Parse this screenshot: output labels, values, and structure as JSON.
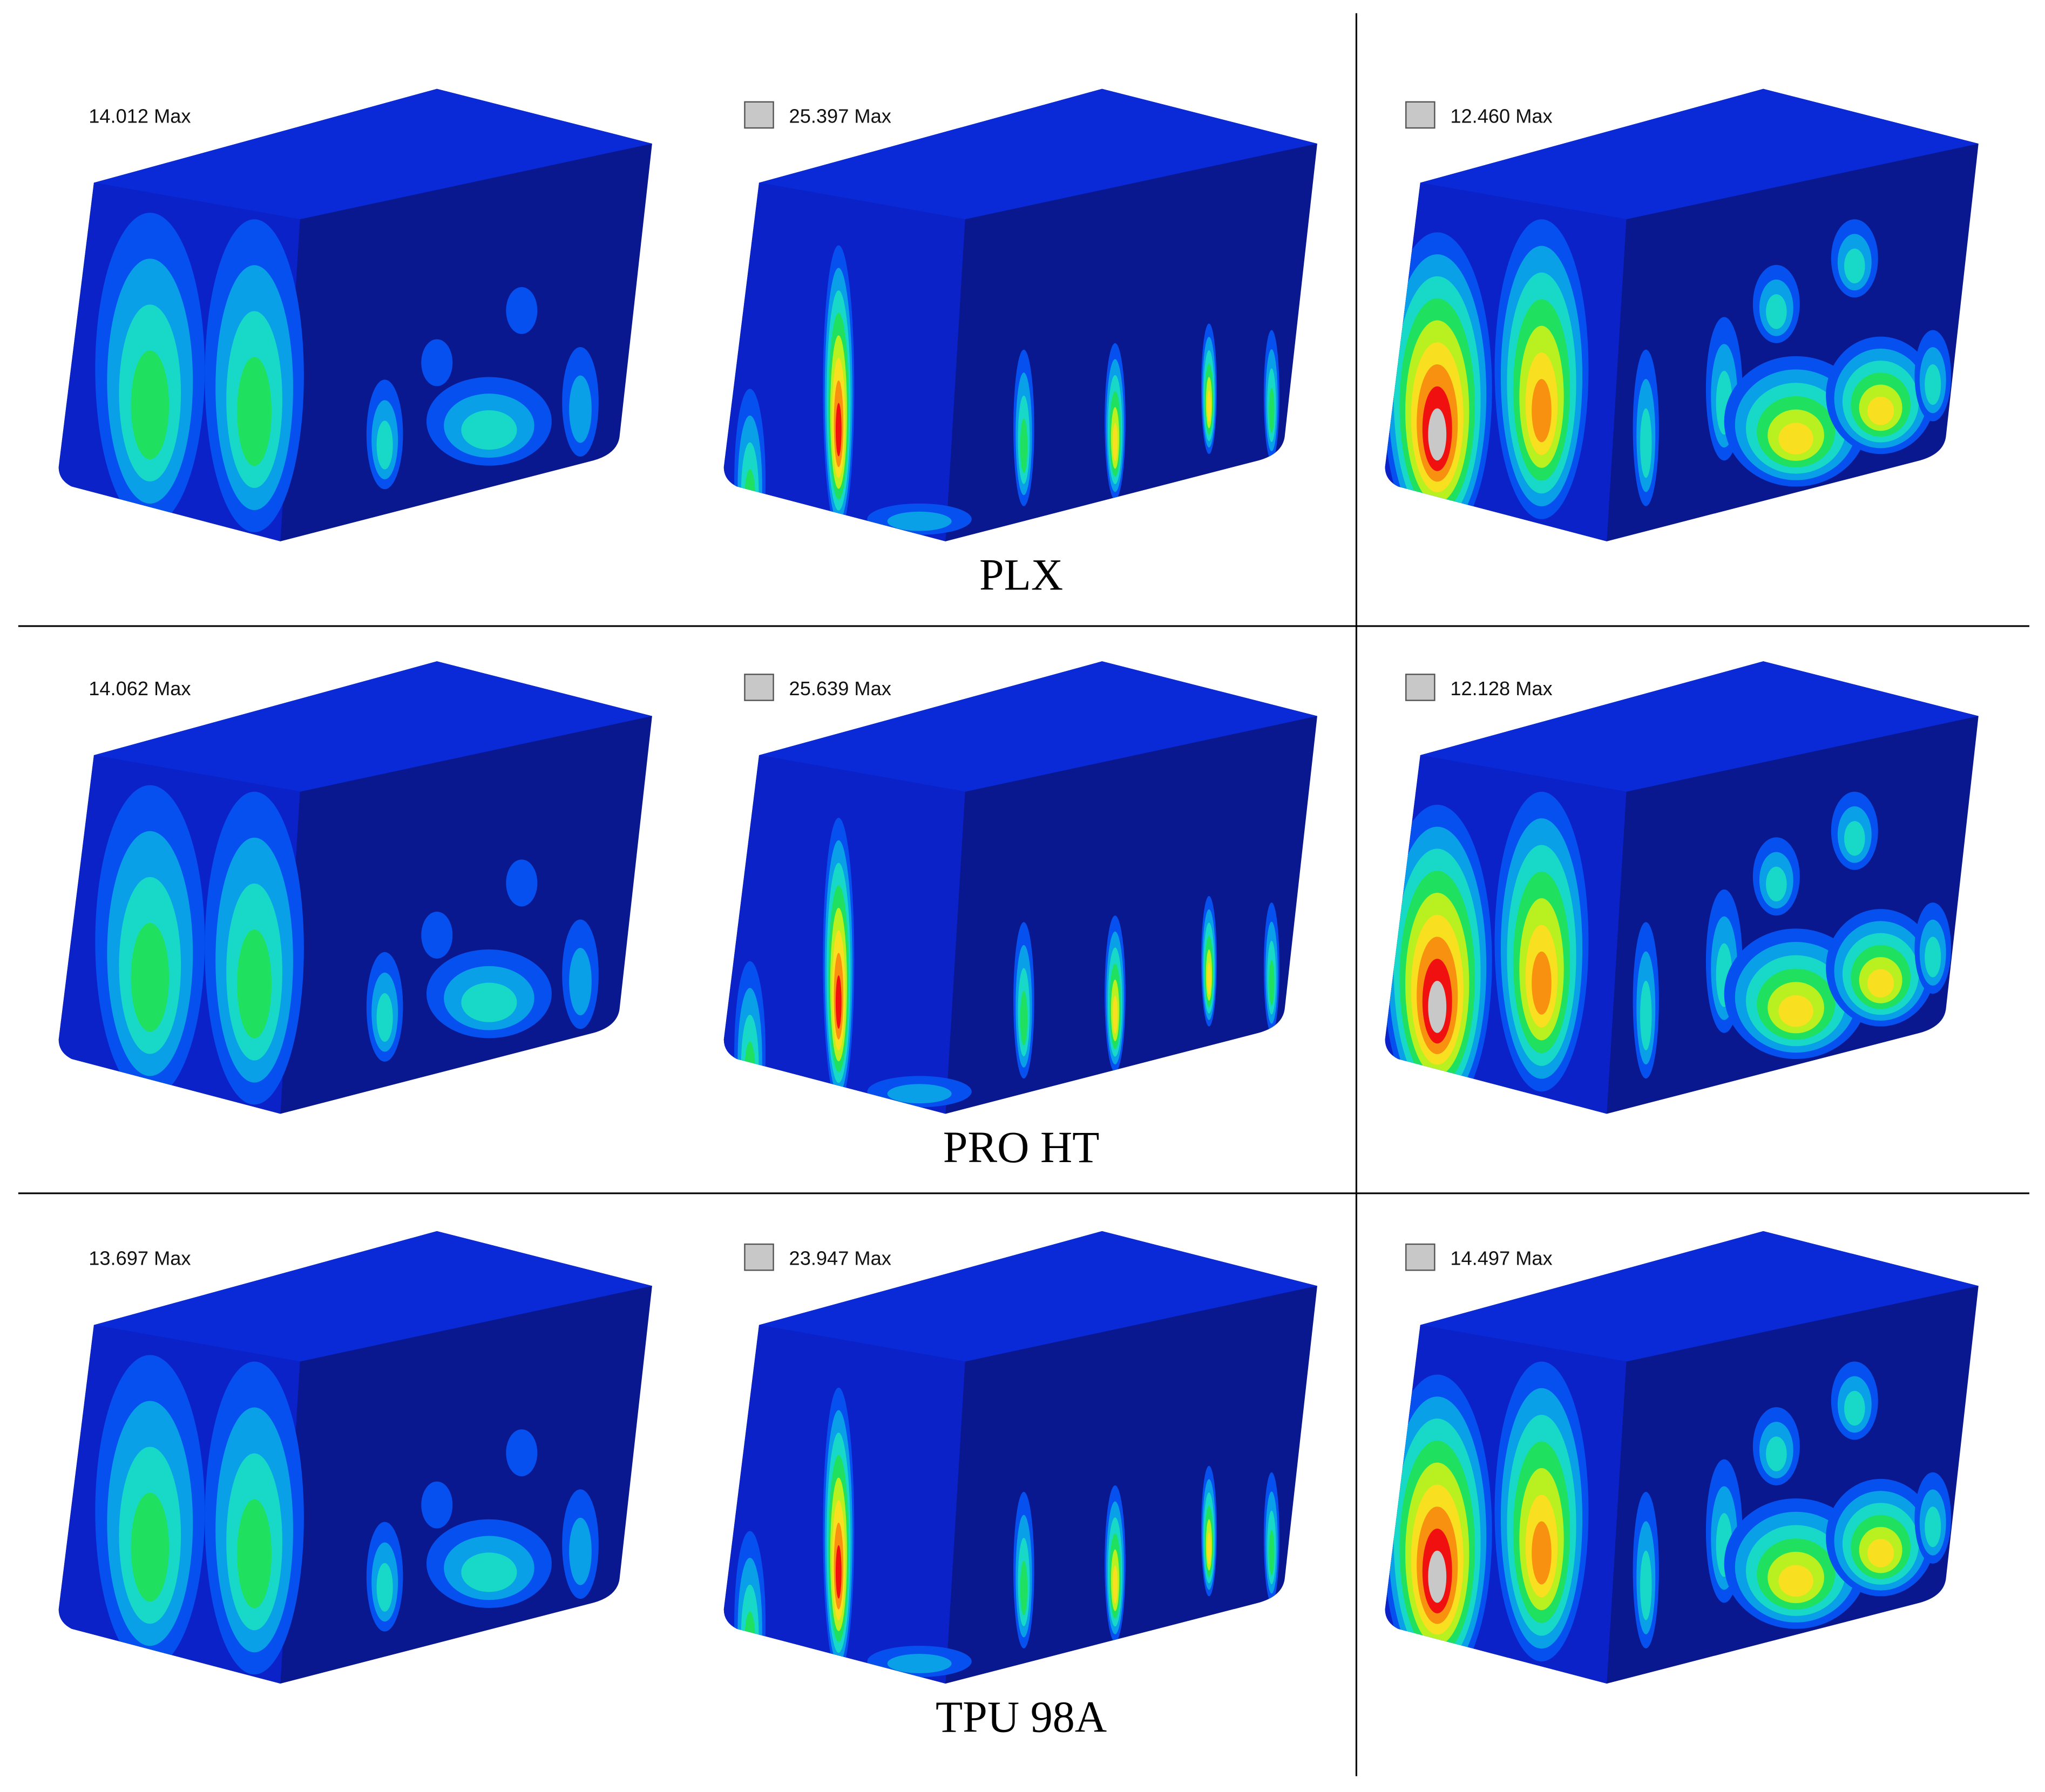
{
  "panels": {
    "rows": [
      {
        "material": "PLX",
        "labels": [
          "14.012 Max",
          "25.397 Max",
          "12.460 Max"
        ]
      },
      {
        "material": "PRO HT",
        "labels": [
          "14.062 Max",
          "25.639 Max",
          "12.128 Max"
        ]
      },
      {
        "material": "TPU 98A",
        "labels": [
          "13.697 Max",
          "23.947 Max",
          "14.497 Max"
        ]
      }
    ]
  }
}
